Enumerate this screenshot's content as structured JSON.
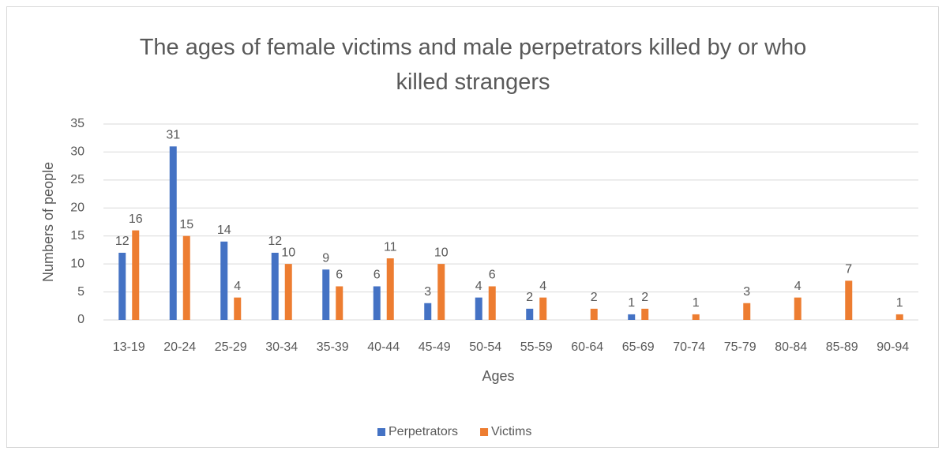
{
  "chart_data": {
    "type": "bar",
    "title": "The ages of female victims and male perpetrators killed by or who killed strangers",
    "x_label": "Ages",
    "y_label": "Numbers of people",
    "categories": [
      "13-19",
      "20-24",
      "25-29",
      "30-34",
      "35-39",
      "40-44",
      "45-49",
      "50-54",
      "55-59",
      "60-64",
      "65-69",
      "70-74",
      "75-79",
      "80-84",
      "85-89",
      "90-94"
    ],
    "series": [
      {
        "name": "Perpetrators",
        "color": "#4472c4",
        "values": [
          12,
          31,
          14,
          12,
          9,
          6,
          3,
          4,
          2,
          null,
          1,
          null,
          null,
          null,
          null,
          null
        ]
      },
      {
        "name": "Victims",
        "color": "#ed7d31",
        "values": [
          16,
          15,
          4,
          10,
          6,
          11,
          10,
          6,
          4,
          2,
          2,
          1,
          3,
          4,
          7,
          1
        ]
      }
    ],
    "ylim": [
      0,
      35
    ],
    "yticks": [
      0,
      5,
      10,
      15,
      20,
      25,
      30,
      35
    ],
    "grid": true,
    "legend": "bottom"
  }
}
